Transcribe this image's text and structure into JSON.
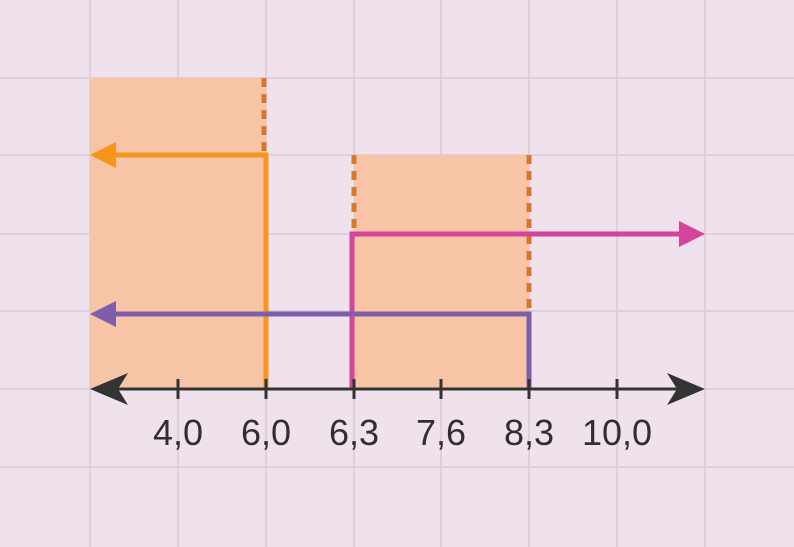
{
  "ticks": [
    "4,0",
    "6,0",
    "6,3",
    "7,6",
    "8,3",
    "10,0"
  ]
}
